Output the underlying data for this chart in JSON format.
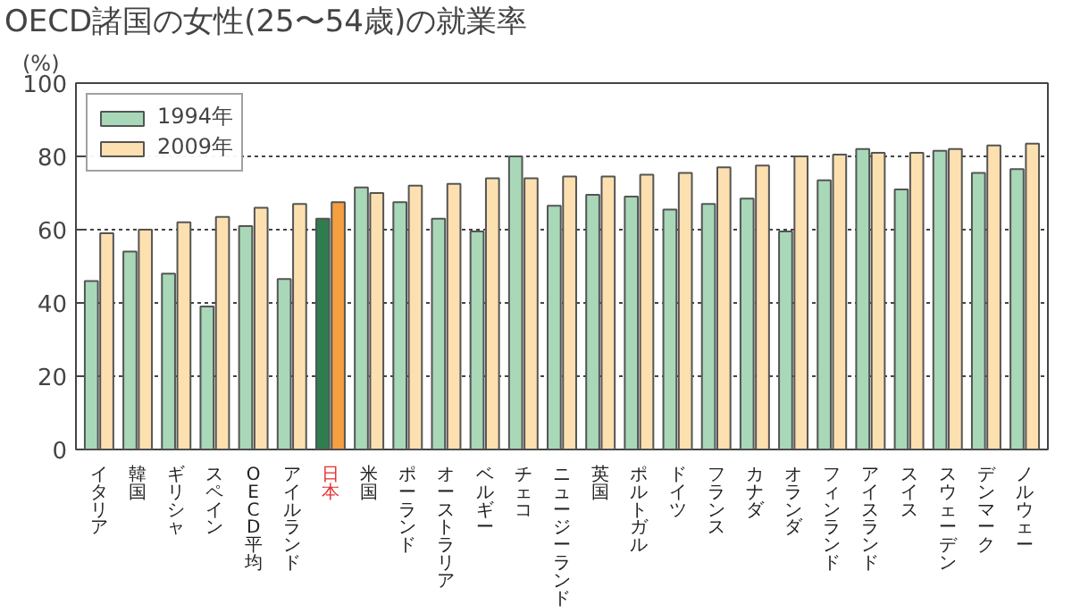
{
  "chart_data": {
    "type": "bar",
    "title": "OECD諸国の女性(25〜54歳)の就業率",
    "ylabel": "(%)",
    "categories": [
      "イタリア",
      "韓国",
      "ギリシャ",
      "スペイン",
      "OECD平均",
      "アイルランド",
      "日本",
      "米国",
      "ポーランド",
      "オーストラリア",
      "ベルギー",
      "チェコ",
      "ニュージーランド",
      "英国",
      "ポルトガル",
      "ドイツ",
      "フランス",
      "カナダ",
      "オランダ",
      "フィンランド",
      "アイスランド",
      "スイス",
      "スウェーデン",
      "デンマーク",
      "ノルウェー"
    ],
    "series": [
      {
        "name": "1994年",
        "color": "#a8d8b8",
        "colors": [
          "#a8d8b8",
          "#a8d8b8",
          "#a8d8b8",
          "#a8d8b8",
          "#a8d8b8",
          "#a8d8b8",
          "#2e7d4f",
          "#a8d8b8",
          "#a8d8b8",
          "#a8d8b8",
          "#a8d8b8",
          "#a8d8b8",
          "#a8d8b8",
          "#a8d8b8",
          "#a8d8b8",
          "#a8d8b8",
          "#a8d8b8",
          "#a8d8b8",
          "#a8d8b8",
          "#a8d8b8",
          "#a8d8b8",
          "#a8d8b8",
          "#a8d8b8",
          "#a8d8b8",
          "#a8d8b8"
        ],
        "values": [
          46,
          54,
          48,
          39,
          61,
          46.5,
          63,
          71.5,
          67.5,
          63,
          59.5,
          80,
          66.5,
          69.5,
          69,
          65.5,
          67,
          68.5,
          59.5,
          73.5,
          82,
          71,
          81.5,
          75.5,
          76.5
        ]
      },
      {
        "name": "2009年",
        "color": "#fde0b0",
        "colors": [
          "#fde0b0",
          "#fde0b0",
          "#fde0b0",
          "#fde0b0",
          "#fde0b0",
          "#fde0b0",
          "#f4a040",
          "#fde0b0",
          "#fde0b0",
          "#fde0b0",
          "#fde0b0",
          "#fde0b0",
          "#fde0b0",
          "#fde0b0",
          "#fde0b0",
          "#fde0b0",
          "#fde0b0",
          "#fde0b0",
          "#fde0b0",
          "#fde0b0",
          "#fde0b0",
          "#fde0b0",
          "#fde0b0",
          "#fde0b0",
          "#fde0b0"
        ],
        "values": [
          59,
          60,
          62,
          63.5,
          66,
          67,
          67.5,
          70,
          72,
          72.5,
          74,
          74,
          74.5,
          74.5,
          75,
          75.5,
          77,
          77.5,
          80,
          80.5,
          81,
          81,
          82,
          83,
          83.5
        ]
      }
    ],
    "ylim": [
      0,
      100
    ],
    "yticks": [
      0,
      20,
      40,
      60,
      80,
      100
    ],
    "grid": "y",
    "legend": "top left"
  }
}
